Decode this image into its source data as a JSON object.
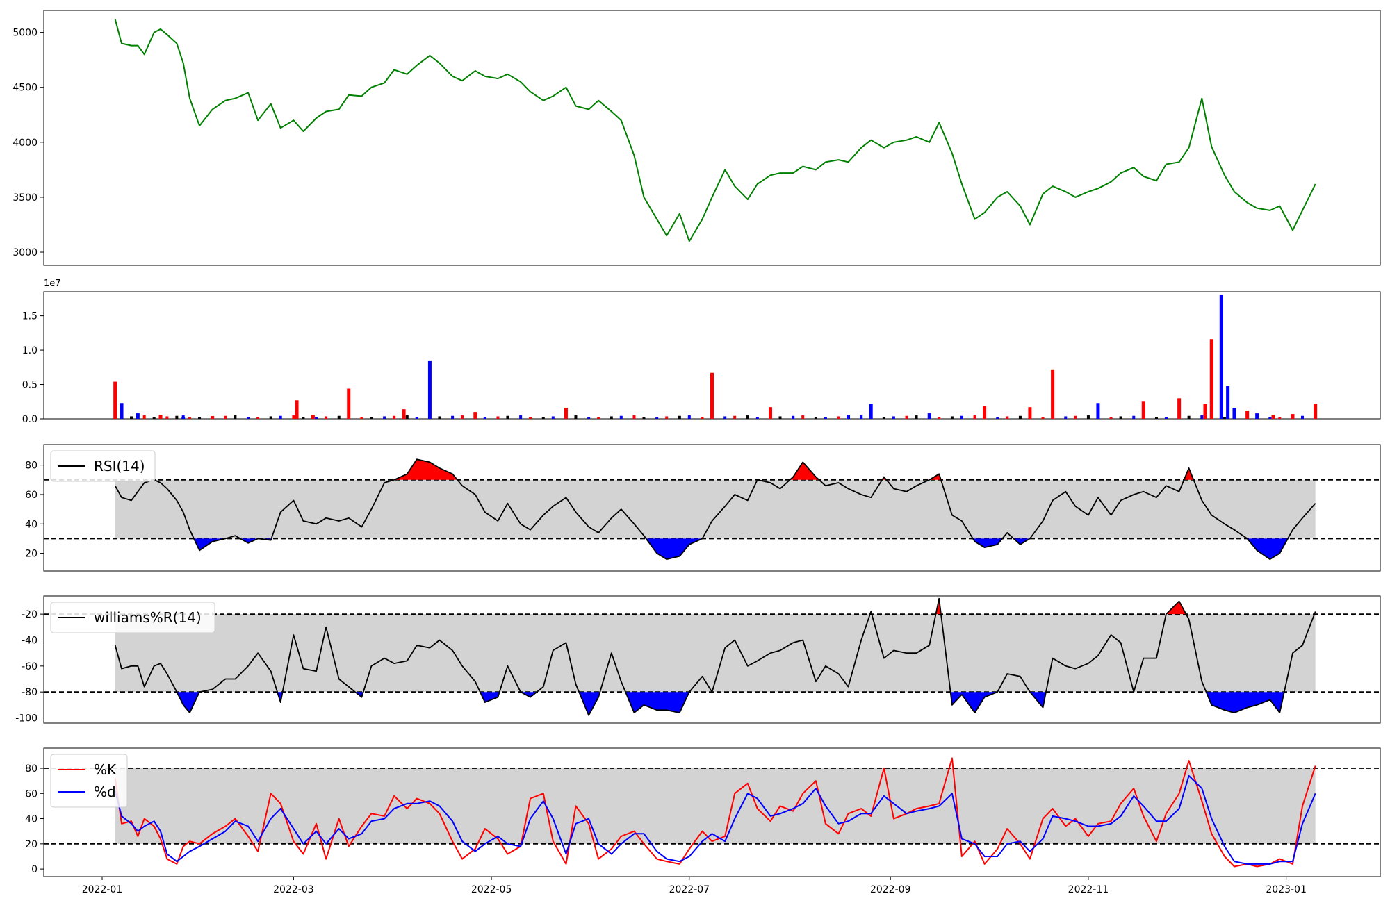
{
  "figure": {
    "x_tick_labels": [
      "2022-01",
      "2022-03",
      "2022-05",
      "2022-07",
      "2022-09",
      "2022-11",
      "2023-01"
    ],
    "colors": {
      "price_line": "#008000",
      "up": "#ff0000",
      "down": "#0000ff",
      "neutral": "#000000",
      "band": "#d3d3d3",
      "k_line": "#ff0000",
      "d_line": "#0000ff"
    }
  },
  "chart_data": [
    {
      "type": "line",
      "panel": "price",
      "title": "",
      "xlabel": "",
      "ylabel": "",
      "ylim": [
        2880,
        5200
      ],
      "yticks": [
        3000,
        3500,
        4000,
        4500,
        5000
      ],
      "x": [
        "2022-01-05",
        "2022-01-07",
        "2022-01-10",
        "2022-01-12",
        "2022-01-14",
        "2022-01-17",
        "2022-01-19",
        "2022-01-21",
        "2022-01-24",
        "2022-01-26",
        "2022-01-28",
        "2022-01-31",
        "2022-02-04",
        "2022-02-08",
        "2022-02-11",
        "2022-02-15",
        "2022-02-18",
        "2022-02-22",
        "2022-02-25",
        "2022-03-01",
        "2022-03-04",
        "2022-03-08",
        "2022-03-11",
        "2022-03-15",
        "2022-03-18",
        "2022-03-22",
        "2022-03-25",
        "2022-03-29",
        "2022-04-01",
        "2022-04-05",
        "2022-04-08",
        "2022-04-12",
        "2022-04-15",
        "2022-04-19",
        "2022-04-22",
        "2022-04-26",
        "2022-04-29",
        "2022-05-03",
        "2022-05-06",
        "2022-05-10",
        "2022-05-13",
        "2022-05-17",
        "2022-05-20",
        "2022-05-24",
        "2022-05-27",
        "2022-05-31",
        "2022-06-03",
        "2022-06-07",
        "2022-06-10",
        "2022-06-14",
        "2022-06-17",
        "2022-06-21",
        "2022-06-24",
        "2022-06-28",
        "2022-07-01",
        "2022-07-05",
        "2022-07-08",
        "2022-07-12",
        "2022-07-15",
        "2022-07-19",
        "2022-07-22",
        "2022-07-26",
        "2022-07-29",
        "2022-08-02",
        "2022-08-05",
        "2022-08-09",
        "2022-08-12",
        "2022-08-16",
        "2022-08-19",
        "2022-08-23",
        "2022-08-26",
        "2022-08-30",
        "2022-09-02",
        "2022-09-06",
        "2022-09-09",
        "2022-09-13",
        "2022-09-16",
        "2022-09-20",
        "2022-09-23",
        "2022-09-27",
        "2022-09-30",
        "2022-10-04",
        "2022-10-07",
        "2022-10-11",
        "2022-10-14",
        "2022-10-18",
        "2022-10-21",
        "2022-10-25",
        "2022-10-28",
        "2022-11-01",
        "2022-11-04",
        "2022-11-08",
        "2022-11-11",
        "2022-11-15",
        "2022-11-18",
        "2022-11-22",
        "2022-11-25",
        "2022-11-29",
        "2022-12-02",
        "2022-12-06",
        "2022-12-09",
        "2022-12-13",
        "2022-12-16",
        "2022-12-20",
        "2022-12-23",
        "2022-12-27",
        "2022-12-30",
        "2023-01-03",
        "2023-01-06",
        "2023-01-10"
      ],
      "series": [
        {
          "values": [
            5120,
            4900,
            4880,
            4880,
            4800,
            5000,
            5030,
            4980,
            4900,
            4720,
            4400,
            4150,
            4300,
            4380,
            4400,
            4450,
            4200,
            4350,
            4130,
            4200,
            4100,
            4220,
            4280,
            4300,
            4430,
            4420,
            4500,
            4540,
            4660,
            4620,
            4700,
            4790,
            4720,
            4600,
            4560,
            4650,
            4600,
            4580,
            4620,
            4550,
            4460,
            4380,
            4420,
            4500,
            4330,
            4300,
            4380,
            4280,
            4200,
            3880,
            3500,
            3300,
            3150,
            3350,
            3100,
            3300,
            3500,
            3750,
            3600,
            3480,
            3620,
            3700,
            3720,
            3720,
            3780,
            3750,
            3820,
            3840,
            3820,
            3950,
            4020,
            3950,
            4000,
            4020,
            4050,
            4000,
            4180,
            3900,
            3620,
            3300,
            3360,
            3500,
            3550,
            3420,
            3250,
            3530,
            3600,
            3550,
            3500,
            3550,
            3580,
            3640,
            3720,
            3770,
            3690,
            3650,
            3800,
            3820,
            3950,
            4400,
            3960,
            3700,
            3550,
            3450,
            3400,
            3380,
            3420,
            3200,
            3380,
            3620
          ]
        }
      ]
    },
    {
      "type": "bar",
      "panel": "volume",
      "title": "",
      "axis_multiplier": "1e7",
      "ylim": [
        0,
        18500000
      ],
      "yticks": [
        0,
        5000000,
        10000000,
        15000000
      ],
      "ytick_labels": [
        "0.0",
        "0.5",
        "1.0",
        "1.5"
      ],
      "x": [
        "2022-01-05",
        "2022-01-07",
        "2022-01-12",
        "2022-01-19",
        "2022-01-26",
        "2022-02-04",
        "2022-03-02",
        "2022-03-07",
        "2022-03-18",
        "2022-04-04",
        "2022-04-12",
        "2022-04-26",
        "2022-05-24",
        "2022-07-08",
        "2022-07-26",
        "2022-08-19",
        "2022-08-26",
        "2022-09-13",
        "2022-09-30",
        "2022-10-14",
        "2022-10-21",
        "2022-11-04",
        "2022-11-18",
        "2022-11-29",
        "2022-12-07",
        "2022-12-09",
        "2022-12-12",
        "2022-12-14",
        "2022-12-16",
        "2022-12-20",
        "2022-12-23",
        "2022-12-28",
        "2023-01-03",
        "2023-01-10"
      ],
      "series": [
        {
          "name": "",
          "values": [
            5400000,
            2300000,
            800000,
            600000,
            300000,
            400000,
            2700000,
            600000,
            4400000,
            1400000,
            8500000,
            1000000,
            1600000,
            6700000,
            1700000,
            500000,
            2200000,
            800000,
            1900000,
            1700000,
            7200000,
            2300000,
            2500000,
            3000000,
            2200000,
            11600000,
            18100000,
            4800000,
            1600000,
            1200000,
            800000,
            600000,
            700000,
            2200000
          ],
          "colors": [
            "up",
            "down",
            "down",
            "up",
            "down",
            "up",
            "up",
            "up",
            "up",
            "up",
            "down",
            "up",
            "up",
            "up",
            "up",
            "down",
            "down",
            "down",
            "up",
            "up",
            "up",
            "down",
            "up",
            "up",
            "up",
            "up",
            "down",
            "down",
            "down",
            "up",
            "down",
            "up",
            "up",
            "up"
          ]
        }
      ]
    },
    {
      "type": "line",
      "panel": "rsi",
      "title": "",
      "ylim": [
        8,
        94
      ],
      "yticks": [
        20,
        40,
        60,
        80
      ],
      "levels": [
        30,
        70
      ],
      "legend": "upper-left",
      "series": [
        {
          "name": "RSI(14)",
          "values": [
            66,
            58,
            56,
            62,
            68,
            70,
            68,
            64,
            56,
            48,
            36,
            22,
            28,
            30,
            32,
            27,
            30,
            29,
            48,
            56,
            42,
            40,
            44,
            42,
            44,
            38,
            50,
            68,
            70,
            74,
            84,
            82,
            78,
            74,
            66,
            60,
            48,
            42,
            54,
            40,
            36,
            46,
            52,
            58,
            48,
            38,
            34,
            44,
            50,
            40,
            32,
            20,
            16,
            18,
            26,
            30,
            42,
            52,
            60,
            56,
            70,
            68,
            64,
            72,
            82,
            72,
            66,
            68,
            64,
            60,
            58,
            72,
            64,
            62,
            66,
            70,
            74,
            46,
            42,
            28,
            24,
            26,
            34,
            26,
            30,
            42,
            56,
            62,
            52,
            46,
            58,
            46,
            56,
            60,
            62,
            58,
            66,
            62,
            78,
            56,
            46,
            40,
            36,
            30,
            22,
            16,
            20,
            36,
            44,
            54
          ]
        }
      ]
    },
    {
      "type": "line",
      "panel": "williams",
      "title": "",
      "ylim": [
        -104,
        -6
      ],
      "yticks": [
        -20,
        -40,
        -60,
        -80,
        -100
      ],
      "levels": [
        -20,
        -80
      ],
      "legend": "upper-left",
      "series": [
        {
          "name": "williams%R(14)",
          "values": [
            -44,
            -62,
            -60,
            -60,
            -76,
            -60,
            -58,
            -66,
            -80,
            -90,
            -96,
            -80,
            -78,
            -70,
            -70,
            -60,
            -50,
            -64,
            -88,
            -36,
            -62,
            -64,
            -30,
            -70,
            -76,
            -84,
            -60,
            -54,
            -58,
            -56,
            -44,
            -46,
            -40,
            -48,
            -60,
            -72,
            -88,
            -84,
            -60,
            -80,
            -84,
            -76,
            -48,
            -42,
            -74,
            -98,
            -84,
            -50,
            -72,
            -96,
            -90,
            -94,
            -94,
            -96,
            -80,
            -68,
            -80,
            -46,
            -40,
            -60,
            -56,
            -50,
            -48,
            -42,
            -40,
            -72,
            -60,
            -66,
            -76,
            -40,
            -18,
            -54,
            -48,
            -50,
            -50,
            -44,
            -8,
            -90,
            -82,
            -96,
            -84,
            -80,
            -66,
            -68,
            -80,
            -92,
            -54,
            -60,
            -62,
            -58,
            -52,
            -36,
            -42,
            -80,
            -54,
            -54,
            -20,
            -10,
            -24,
            -72,
            -90,
            -94,
            -96,
            -92,
            -90,
            -86,
            -96,
            -50,
            -44,
            -18
          ]
        }
      ]
    },
    {
      "type": "line",
      "panel": "stochastic",
      "title": "",
      "ylim": [
        -6,
        96
      ],
      "yticks": [
        0,
        20,
        40,
        60,
        80
      ],
      "levels": [
        20,
        80
      ],
      "legend": "upper-left",
      "series": [
        {
          "name": "%K",
          "values": [
            72,
            36,
            38,
            26,
            40,
            34,
            24,
            8,
            4,
            18,
            22,
            20,
            28,
            34,
            40,
            26,
            14,
            60,
            52,
            22,
            12,
            36,
            8,
            40,
            18,
            34,
            44,
            42,
            58,
            48,
            56,
            52,
            44,
            22,
            8,
            16,
            32,
            24,
            12,
            18,
            56,
            60,
            22,
            4,
            50,
            36,
            8,
            16,
            26,
            30,
            20,
            8,
            6,
            4,
            16,
            30,
            22,
            26,
            60,
            68,
            48,
            38,
            50,
            46,
            60,
            70,
            36,
            28,
            44,
            48,
            42,
            80,
            40,
            44,
            48,
            50,
            52,
            88,
            10,
            22,
            4,
            16,
            32,
            20,
            8,
            40,
            48,
            34,
            40,
            26,
            36,
            38,
            52,
            64,
            42,
            22,
            44,
            60,
            86,
            54,
            28,
            10,
            2,
            4,
            2,
            4,
            8,
            4,
            50,
            82
          ]
        },
        {
          "name": "%d",
          "values": [
            62,
            42,
            36,
            30,
            34,
            38,
            30,
            12,
            6,
            10,
            14,
            18,
            24,
            30,
            38,
            34,
            22,
            40,
            48,
            32,
            20,
            30,
            20,
            32,
            24,
            28,
            38,
            40,
            48,
            52,
            52,
            54,
            50,
            38,
            22,
            14,
            20,
            26,
            20,
            18,
            40,
            54,
            40,
            12,
            36,
            40,
            20,
            12,
            20,
            28,
            28,
            14,
            8,
            6,
            10,
            22,
            28,
            22,
            40,
            60,
            56,
            42,
            44,
            48,
            52,
            64,
            50,
            36,
            38,
            44,
            44,
            58,
            52,
            44,
            46,
            48,
            50,
            60,
            24,
            20,
            10,
            10,
            20,
            22,
            14,
            24,
            42,
            40,
            38,
            34,
            34,
            36,
            42,
            58,
            50,
            38,
            38,
            48,
            74,
            64,
            40,
            18,
            6,
            4,
            4,
            4,
            6,
            6,
            36,
            60
          ]
        }
      ]
    }
  ]
}
